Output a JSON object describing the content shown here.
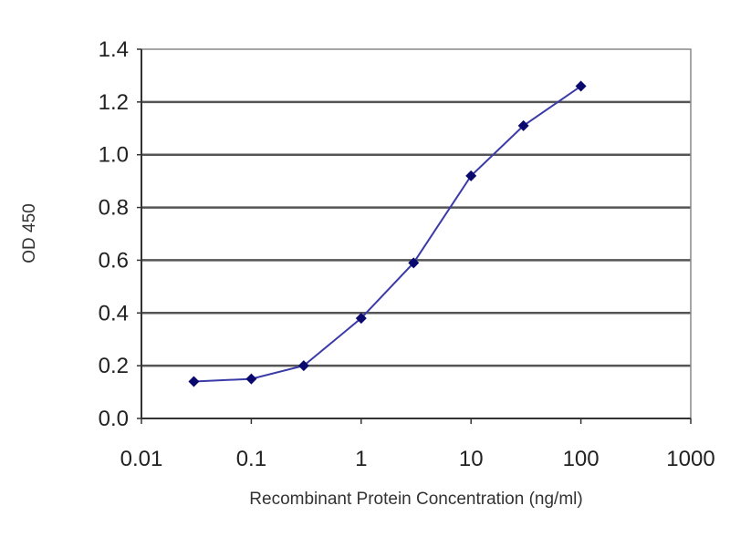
{
  "chart_data": {
    "type": "line",
    "title": "",
    "xlabel": "Recombinant Protein Concentration (ng/ml)",
    "ylabel": "OD 450",
    "xscale": "log",
    "xlim": [
      0.01,
      1000
    ],
    "ylim": [
      0,
      1.4
    ],
    "x_ticks": [
      "0.01",
      "0.1",
      "1",
      "10",
      "100",
      "1000"
    ],
    "y_ticks": [
      "0.0",
      "0.2",
      "0.4",
      "0.6",
      "0.8",
      "1.0",
      "1.2",
      "1.4"
    ],
    "grid": "horizontal",
    "legend": "none",
    "series": [
      {
        "x": [
          0.03,
          0.1,
          0.3,
          1,
          3,
          10,
          30,
          100
        ],
        "y": [
          0.14,
          0.15,
          0.2,
          0.38,
          0.59,
          0.92,
          1.11,
          1.26
        ],
        "line_color": "#3a3aa8",
        "marker_color": "#0a0a6e",
        "marker": "diamond"
      }
    ],
    "grid_color": "#555555"
  }
}
